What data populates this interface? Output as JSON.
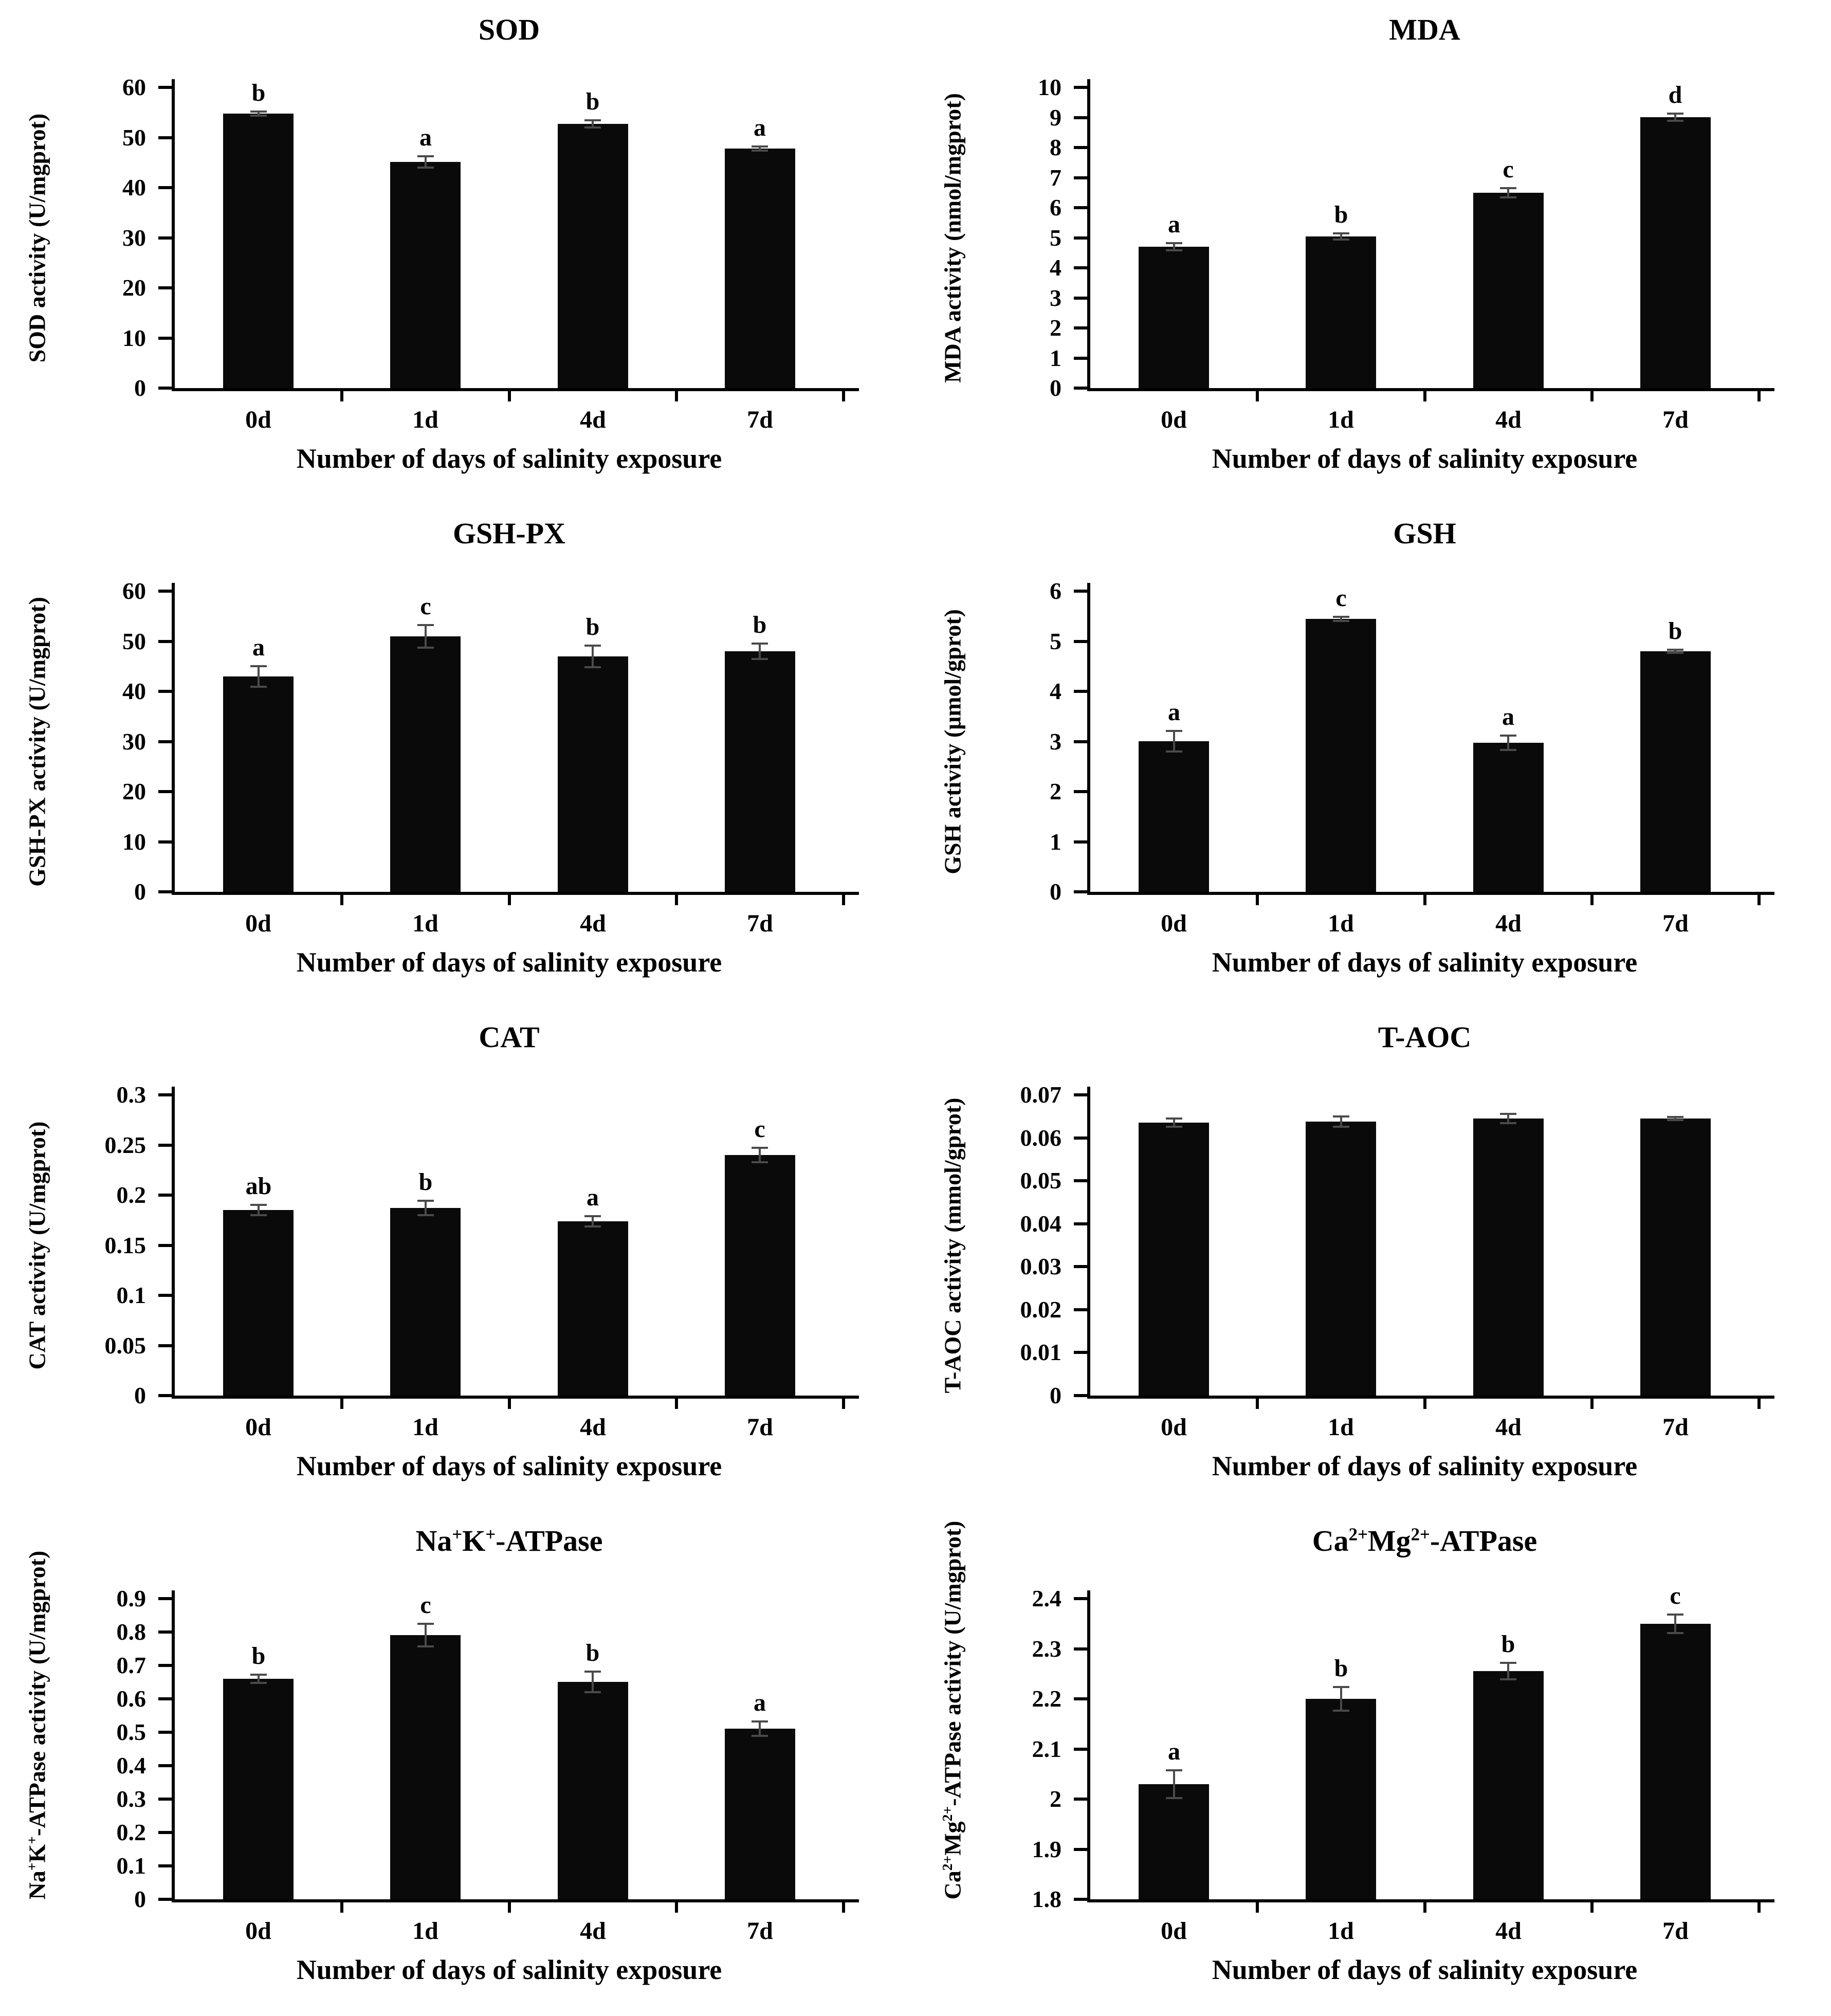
{
  "figure": {
    "background": "#ffffff",
    "bar_color": "#0a0a0a",
    "error_bar_color": "#4a4a4a",
    "xlabel": "Number of days of salinity exposure",
    "categories": [
      "0d",
      "1d",
      "4d",
      "7d"
    ]
  },
  "chart_data": [
    {
      "id": "sod",
      "type": "bar",
      "title": "SOD",
      "ylabel": "SOD activity (U/mgprot)",
      "xlabel": "Number of days of salinity exposure",
      "categories": [
        "0d",
        "1d",
        "4d",
        "7d"
      ],
      "values": [
        54.8,
        45.1,
        52.7,
        47.8
      ],
      "errors": [
        0.4,
        1.1,
        0.7,
        0.4
      ],
      "letters": [
        "b",
        "a",
        "b",
        "a"
      ],
      "ylim": [
        0,
        60
      ],
      "ytick_labels": [
        "0",
        "10",
        "20",
        "30",
        "40",
        "50",
        "60"
      ],
      "grid": false
    },
    {
      "id": "mda",
      "type": "bar",
      "title": "MDA",
      "ylabel": "MDA activity (nmol/mgprot)",
      "xlabel": "Number of days of salinity exposure",
      "categories": [
        "0d",
        "1d",
        "4d",
        "7d"
      ],
      "values": [
        4.7,
        5.05,
        6.5,
        9.0
      ],
      "errors": [
        0.12,
        0.1,
        0.15,
        0.12
      ],
      "letters": [
        "a",
        "b",
        "c",
        "d"
      ],
      "ylim": [
        0,
        10
      ],
      "ytick_labels": [
        "0",
        "1",
        "2",
        "3",
        "4",
        "5",
        "6",
        "7",
        "8",
        "9",
        "10"
      ],
      "grid": false
    },
    {
      "id": "gsh-px",
      "type": "bar",
      "title": "GSH-PX",
      "ylabel": "GSH-PX activity (U/mgprot)",
      "xlabel": "Number of days of salinity exposure",
      "categories": [
        "0d",
        "1d",
        "4d",
        "7d"
      ],
      "values": [
        43,
        51,
        47,
        48
      ],
      "errors": [
        2.0,
        2.3,
        2.2,
        1.5
      ],
      "letters": [
        "a",
        "c",
        "b",
        "b"
      ],
      "ylim": [
        0,
        60
      ],
      "ytick_labels": [
        "0",
        "10",
        "20",
        "30",
        "40",
        "50",
        "60"
      ],
      "grid": false
    },
    {
      "id": "gsh",
      "type": "bar",
      "title": "GSH",
      "ylabel": "GSH activity (μmol/gprot)",
      "xlabel": "Number of days of salinity exposure",
      "categories": [
        "0d",
        "1d",
        "4d",
        "7d"
      ],
      "values": [
        3.0,
        5.45,
        2.97,
        4.8
      ],
      "errors": [
        0.2,
        0.04,
        0.14,
        0.03
      ],
      "letters": [
        "a",
        "c",
        "a",
        "b"
      ],
      "ylim": [
        0,
        6
      ],
      "ytick_labels": [
        "0",
        "1",
        "2",
        "3",
        "4",
        "5",
        "6"
      ],
      "grid": false
    },
    {
      "id": "cat",
      "type": "bar",
      "title": "CAT",
      "ylabel": "CAT activity (U/mgprot)",
      "xlabel": "Number of days of salinity exposure",
      "categories": [
        "0d",
        "1d",
        "4d",
        "7d"
      ],
      "values": [
        0.185,
        0.187,
        0.174,
        0.24
      ],
      "errors": [
        0.005,
        0.007,
        0.005,
        0.007
      ],
      "letters": [
        "ab",
        "b",
        "a",
        "c"
      ],
      "ylim": [
        0,
        0.3
      ],
      "ytick_labels": [
        "0",
        "0.05",
        "0.1",
        "0.15",
        "0.2",
        "0.25",
        "0.3"
      ],
      "grid": false
    },
    {
      "id": "t-aoc",
      "type": "bar",
      "title": "T-AOC",
      "ylabel": "T-AOC activity (mmol/gprot)",
      "xlabel": "Number of days of salinity exposure",
      "categories": [
        "0d",
        "1d",
        "4d",
        "7d"
      ],
      "values": [
        0.0635,
        0.0638,
        0.0645,
        0.0645
      ],
      "errors": [
        0.001,
        0.0012,
        0.0011,
        0.0004
      ],
      "letters": [
        "",
        "",
        "",
        ""
      ],
      "ylim": [
        0,
        0.07
      ],
      "ytick_labels": [
        "0",
        "0.01",
        "0.02",
        "0.03",
        "0.04",
        "0.05",
        "0.06",
        "0.07"
      ],
      "grid": false
    },
    {
      "id": "nak-atpase",
      "type": "bar",
      "title": "Na^{+}K^{+}-ATPase",
      "ylabel": "Na^{+}K^{+}-ATPase activity (U/mgprot)",
      "xlabel": "Number of days of salinity exposure",
      "categories": [
        "0d",
        "1d",
        "4d",
        "7d"
      ],
      "values": [
        0.66,
        0.79,
        0.65,
        0.51
      ],
      "errors": [
        0.012,
        0.034,
        0.03,
        0.022
      ],
      "letters": [
        "b",
        "c",
        "b",
        "a"
      ],
      "ylim": [
        0,
        0.9
      ],
      "ytick_labels": [
        "0",
        "0.1",
        "0.2",
        "0.3",
        "0.4",
        "0.5",
        "0.6",
        "0.7",
        "0.8",
        "0.9"
      ],
      "grid": false
    },
    {
      "id": "camg-atpase",
      "type": "bar",
      "title": "Ca^{2+}Mg^{2+}-ATPase",
      "ylabel": "Ca^{2+}Mg^{2+}-ATPase activity (U/mgprot)",
      "xlabel": "Number of days of salinity exposure",
      "categories": [
        "0d",
        "1d",
        "4d",
        "7d"
      ],
      "values": [
        2.03,
        2.2,
        2.255,
        2.35
      ],
      "errors": [
        0.028,
        0.024,
        0.016,
        0.018
      ],
      "letters": [
        "a",
        "b",
        "b",
        "c"
      ],
      "ylim": [
        1.8,
        2.4
      ],
      "ytick_labels": [
        "1.8",
        "1.9",
        "2",
        "2.1",
        "2.2",
        "2.3",
        "2.4"
      ],
      "grid": false
    }
  ]
}
